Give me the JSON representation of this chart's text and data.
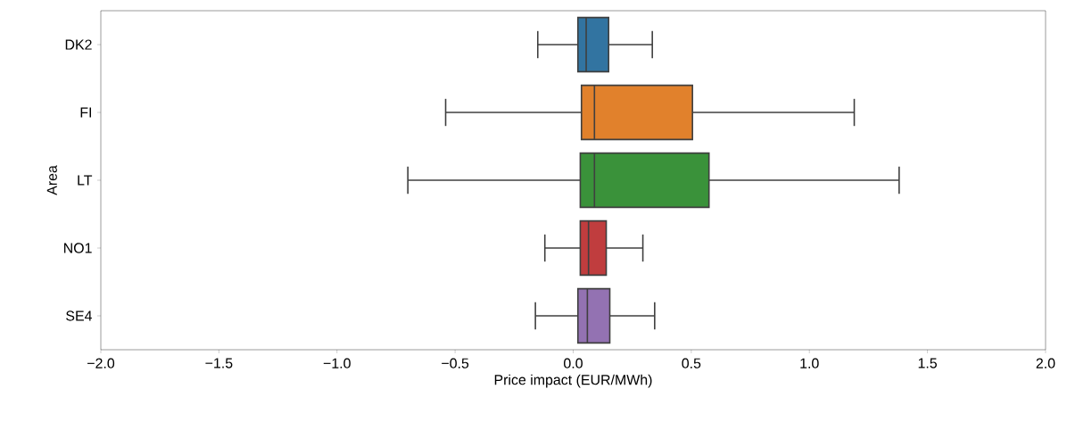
{
  "chart_data": {
    "type": "box",
    "orientation": "horizontal",
    "xlabel": "Price impact (EUR/MWh)",
    "ylabel": "Area",
    "categories": [
      "DK2",
      "FI",
      "LT",
      "NO1",
      "SE4"
    ],
    "colors": [
      "#3274a1",
      "#e1812c",
      "#3a923a",
      "#c03d3e",
      "#9372b2"
    ],
    "boxes": [
      {
        "low": -0.15,
        "q1": 0.02,
        "median": 0.055,
        "q3": 0.15,
        "high": 0.335
      },
      {
        "low": -0.54,
        "q1": 0.035,
        "median": 0.09,
        "q3": 0.505,
        "high": 1.19
      },
      {
        "low": -0.7,
        "q1": 0.03,
        "median": 0.09,
        "q3": 0.575,
        "high": 1.38
      },
      {
        "low": -0.12,
        "q1": 0.03,
        "median": 0.065,
        "q3": 0.14,
        "high": 0.295
      },
      {
        "low": -0.16,
        "q1": 0.02,
        "median": 0.06,
        "q3": 0.155,
        "high": 0.345
      }
    ],
    "xlim": [
      -2,
      2
    ],
    "xticks": [
      {
        "value": -2,
        "label": "−2.0"
      },
      {
        "value": -1.5,
        "label": "−1.5"
      },
      {
        "value": -1,
        "label": "−1.0"
      },
      {
        "value": -0.5,
        "label": "−0.5"
      },
      {
        "value": 0,
        "label": "0.0"
      },
      {
        "value": 0.5,
        "label": "0.5"
      },
      {
        "value": 1,
        "label": "1.0"
      },
      {
        "value": 1.5,
        "label": "1.5"
      },
      {
        "value": 2,
        "label": "2.0"
      }
    ],
    "grid": false
  }
}
